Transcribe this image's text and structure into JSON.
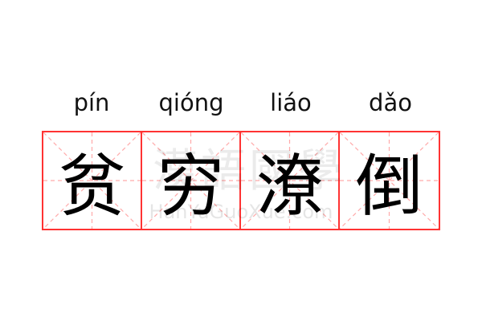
{
  "pinyin": [
    "pín",
    "qióng",
    "liáo",
    "dǎo"
  ],
  "characters": [
    "贫",
    "穷",
    "潦",
    "倒"
  ],
  "watermark": {
    "han": "漢語國學",
    "latin": "HanYuGuoXue.com"
  },
  "colors": {
    "grid": "#ff3333",
    "guide": "#ffaaaa",
    "text": "#000000"
  }
}
